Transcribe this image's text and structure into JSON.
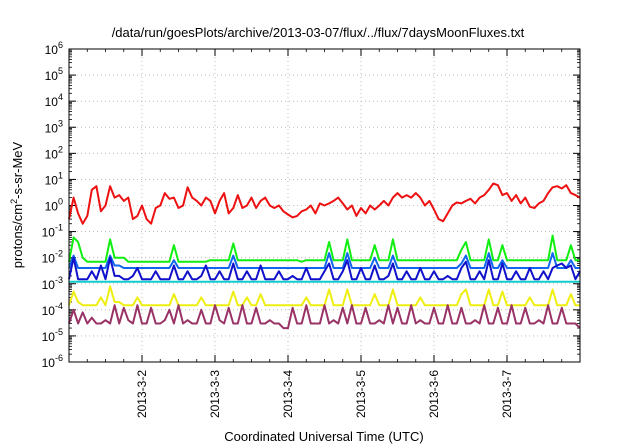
{
  "chart_data": {
    "type": "line",
    "title": "/data/run/goesPlots/archive/2013-03-07/flux/../flux/7daysMoonFluxes.txt",
    "xlabel": "Coordinated Universal Time (UTC)",
    "ylabel": {
      "prefix": "protons/cm",
      "sup": "2",
      "suffix": "-s-sr-MeV"
    },
    "x_ticks": [
      "2013-3-2",
      "2013-3-3",
      "2013-3-4",
      "2013-3-5",
      "2013-3-6",
      "2013-3-7"
    ],
    "x_range_days": [
      0.0,
      7.0
    ],
    "x_tick_days": [
      1.0,
      2.0,
      3.0,
      4.0,
      5.0,
      6.0
    ],
    "yscale": "log",
    "ylim": [
      1e-06,
      1000000.0
    ],
    "y_ticks": [
      {
        "base": "10",
        "exp": "-6"
      },
      {
        "base": "10",
        "exp": "-5"
      },
      {
        "base": "10",
        "exp": "-4"
      },
      {
        "base": "10",
        "exp": "-3"
      },
      {
        "base": "10",
        "exp": "-2"
      },
      {
        "base": "10",
        "exp": "-1"
      },
      {
        "base": "10",
        "exp": "0"
      },
      {
        "base": "10",
        "exp": "1"
      },
      {
        "base": "10",
        "exp": "2"
      },
      {
        "base": "10",
        "exp": "3"
      },
      {
        "base": "10",
        "exp": "4"
      },
      {
        "base": "10",
        "exp": "5"
      },
      {
        "base": "10",
        "exp": "6"
      }
    ],
    "grid": true,
    "series": [
      {
        "color": "#ee1111",
        "values": [
          0.3,
          2.0,
          0.5,
          0.2,
          0.4,
          4.0,
          5.5,
          0.6,
          1.0,
          5.5,
          2.0,
          2.5,
          1.5,
          2.0,
          0.3,
          0.4,
          1.0,
          0.3,
          0.2,
          0.8,
          1.0,
          3.0,
          1.8,
          2.0,
          0.8,
          1.0,
          5.0,
          2.0,
          1.5,
          1.0,
          2.0,
          1.5,
          0.5,
          1.5,
          3.0,
          0.5,
          0.8,
          2.5,
          0.8,
          1.0,
          2.0,
          0.8,
          1.5,
          2.0,
          1.0,
          0.8,
          1.0,
          0.6,
          0.45,
          0.35,
          0.4,
          0.6,
          0.7,
          1.0,
          0.5,
          1.2,
          1.0,
          1.2,
          1.5,
          2.0,
          1.2,
          0.7,
          1.0,
          0.4,
          0.8,
          0.5,
          1.0,
          0.7,
          1.0,
          1.5,
          1.0,
          2.0,
          3.0,
          2.0,
          2.5,
          2.0,
          3.0,
          2.0,
          1.0,
          1.5,
          0.7,
          0.3,
          0.25,
          0.5,
          1.0,
          1.3,
          1.2,
          1.5,
          1.8,
          1.2,
          2.0,
          2.5,
          4.0,
          7.0,
          6.0,
          2.5,
          3.0,
          1.5,
          2.5,
          1.2,
          2.0,
          0.9,
          0.8,
          1.2,
          1.5,
          3.0,
          5.0,
          5.5,
          4.5,
          6.0,
          3.0,
          2.5,
          2.0
        ]
      },
      {
        "color": "#11ee11",
        "values": [
          0.007,
          0.06,
          0.04,
          0.01,
          0.007,
          0.007,
          0.007,
          0.007,
          0.007,
          0.05,
          0.01,
          0.01,
          0.01,
          0.007,
          0.007,
          0.007,
          0.007,
          0.007,
          0.007,
          0.007,
          0.007,
          0.007,
          0.007,
          0.03,
          0.007,
          0.007,
          0.007,
          0.007,
          0.007,
          0.007,
          0.007,
          0.008,
          0.008,
          0.008,
          0.008,
          0.008,
          0.035,
          0.008,
          0.008,
          0.008,
          0.008,
          0.008,
          0.008,
          0.008,
          0.008,
          0.008,
          0.008,
          0.008,
          0.008,
          0.008,
          0.008,
          0.007,
          0.008,
          0.008,
          0.008,
          0.008,
          0.008,
          0.04,
          0.008,
          0.008,
          0.008,
          0.05,
          0.008,
          0.008,
          0.008,
          0.008,
          0.008,
          0.03,
          0.008,
          0.008,
          0.008,
          0.05,
          0.008,
          0.008,
          0.008,
          0.008,
          0.008,
          0.008,
          0.008,
          0.008,
          0.008,
          0.008,
          0.008,
          0.008,
          0.008,
          0.008,
          0.02,
          0.04,
          0.008,
          0.008,
          0.008,
          0.008,
          0.05,
          0.008,
          0.008,
          0.03,
          0.008,
          0.008,
          0.008,
          0.008,
          0.008,
          0.008,
          0.008,
          0.008,
          0.008,
          0.008,
          0.07,
          0.008,
          0.008,
          0.008,
          0.03,
          0.008,
          0.008
        ]
      },
      {
        "color": "#1166ee",
        "values": [
          0.004,
          0.012,
          0.004,
          0.004,
          0.004,
          0.004,
          0.004,
          0.004,
          0.004,
          0.012,
          0.005,
          0.005,
          0.004,
          0.004,
          0.004,
          0.004,
          0.004,
          0.004,
          0.004,
          0.004,
          0.004,
          0.004,
          0.004,
          0.008,
          0.004,
          0.004,
          0.004,
          0.004,
          0.004,
          0.004,
          0.004,
          0.004,
          0.004,
          0.004,
          0.004,
          0.004,
          0.012,
          0.004,
          0.004,
          0.004,
          0.004,
          0.004,
          0.004,
          0.004,
          0.004,
          0.004,
          0.004,
          0.004,
          0.004,
          0.004,
          0.004,
          0.004,
          0.004,
          0.004,
          0.004,
          0.004,
          0.004,
          0.015,
          0.004,
          0.004,
          0.004,
          0.015,
          0.004,
          0.004,
          0.004,
          0.004,
          0.004,
          0.01,
          0.004,
          0.004,
          0.004,
          0.012,
          0.004,
          0.004,
          0.004,
          0.004,
          0.004,
          0.004,
          0.004,
          0.004,
          0.004,
          0.004,
          0.004,
          0.004,
          0.004,
          0.004,
          0.006,
          0.012,
          0.004,
          0.004,
          0.004,
          0.004,
          0.015,
          0.004,
          0.004,
          0.008,
          0.004,
          0.004,
          0.004,
          0.004,
          0.004,
          0.004,
          0.004,
          0.004,
          0.004,
          0.004,
          0.015,
          0.004,
          0.004,
          0.004,
          0.008,
          0.004,
          0.004
        ]
      },
      {
        "color": "#1111cc",
        "values": [
          0.0015,
          0.01,
          0.0015,
          0.0015,
          0.0015,
          0.003,
          0.0015,
          0.005,
          0.0015,
          0.01,
          0.002,
          0.002,
          0.0015,
          0.0015,
          0.002,
          0.004,
          0.0015,
          0.0015,
          0.0015,
          0.003,
          0.0015,
          0.0015,
          0.0015,
          0.005,
          0.0015,
          0.0015,
          0.003,
          0.0015,
          0.0015,
          0.002,
          0.005,
          0.0015,
          0.0015,
          0.003,
          0.0015,
          0.0015,
          0.006,
          0.0015,
          0.0015,
          0.003,
          0.0015,
          0.0015,
          0.005,
          0.0015,
          0.0015,
          0.0015,
          0.003,
          0.0015,
          0.0015,
          0.002,
          0.0015,
          0.0015,
          0.004,
          0.0015,
          0.0015,
          0.0015,
          0.003,
          0.006,
          0.0015,
          0.0015,
          0.003,
          0.008,
          0.0015,
          0.0015,
          0.004,
          0.0015,
          0.0015,
          0.005,
          0.0015,
          0.0015,
          0.002,
          0.006,
          0.0015,
          0.0015,
          0.003,
          0.0015,
          0.0015,
          0.004,
          0.0015,
          0.0015,
          0.003,
          0.0015,
          0.0015,
          0.002,
          0.0015,
          0.0015,
          0.004,
          0.007,
          0.0015,
          0.0015,
          0.003,
          0.0015,
          0.008,
          0.0015,
          0.0015,
          0.006,
          0.0015,
          0.0015,
          0.003,
          0.0015,
          0.0015,
          0.004,
          0.0015,
          0.0015,
          0.003,
          0.0015,
          0.004,
          0.005,
          0.006,
          0.004,
          0.005,
          0.0015,
          0.003
        ]
      },
      {
        "color": "#11cccc",
        "values": [
          0.0012,
          0.0012,
          0.0012,
          0.0012,
          0.0012,
          0.0012,
          0.0012,
          0.0012,
          0.0012,
          0.0012,
          0.0012,
          0.0012,
          0.0012,
          0.0012,
          0.0012,
          0.0012,
          0.0012,
          0.0012,
          0.0012,
          0.0012,
          0.0012,
          0.0012,
          0.0012,
          0.0012,
          0.0012,
          0.0012,
          0.0012,
          0.0012,
          0.0012,
          0.0012,
          0.0012,
          0.0012,
          0.0012,
          0.0012,
          0.0012,
          0.0012,
          0.0012,
          0.0012,
          0.0012,
          0.0012,
          0.0012,
          0.0012,
          0.0012,
          0.0012,
          0.0012,
          0.0012,
          0.0012,
          0.0012,
          0.0012,
          0.0012,
          0.0012,
          0.0012,
          0.0012,
          0.0012,
          0.0012,
          0.0012,
          0.0012,
          0.0012,
          0.0012,
          0.0012,
          0.0012,
          0.0012,
          0.0012,
          0.0012,
          0.0012,
          0.0012,
          0.0012,
          0.0012,
          0.0012,
          0.0012,
          0.0012,
          0.0012,
          0.0012,
          0.0012,
          0.0012,
          0.0012,
          0.0012,
          0.0012,
          0.0012,
          0.0012,
          0.0012,
          0.0012,
          0.0012,
          0.0012,
          0.0012,
          0.0012,
          0.0012,
          0.0012,
          0.0012,
          0.0012,
          0.0012,
          0.0012,
          0.0012,
          0.0012,
          0.0012,
          0.0012,
          0.0012,
          0.0012,
          0.0012,
          0.0012,
          0.0012,
          0.0012,
          0.0012,
          0.0012,
          0.0012,
          0.0012,
          0.0012,
          0.0012,
          0.0012,
          0.0012,
          0.0012,
          0.0012,
          0.0012
        ]
      },
      {
        "color": "#eeee11",
        "values": [
          0.00015,
          0.0005,
          0.0002,
          0.00015,
          0.00015,
          0.00015,
          0.00015,
          0.0003,
          0.00015,
          0.0008,
          0.0002,
          0.0002,
          0.00015,
          0.00015,
          0.00015,
          0.0003,
          0.00015,
          0.00015,
          0.00015,
          0.00015,
          0.00015,
          0.00015,
          0.00015,
          0.0004,
          0.00015,
          0.00015,
          0.00015,
          0.00015,
          0.00015,
          0.0003,
          0.00015,
          0.00015,
          0.00015,
          0.00015,
          0.00015,
          0.00015,
          0.0005,
          0.00015,
          0.00015,
          0.0003,
          0.00015,
          0.00015,
          0.0004,
          0.00015,
          0.00015,
          0.00015,
          0.00015,
          0.00015,
          0.00015,
          0.00015,
          0.00015,
          0.00015,
          0.0003,
          0.00015,
          0.00015,
          0.00015,
          0.00015,
          0.0006,
          0.00015,
          0.00015,
          0.00015,
          0.0006,
          0.00015,
          0.00015,
          0.00015,
          0.00015,
          0.00015,
          0.0004,
          0.00015,
          0.00015,
          0.00015,
          0.0006,
          0.00015,
          0.00015,
          0.00015,
          0.00015,
          0.00015,
          0.0003,
          0.00015,
          0.00015,
          0.00015,
          0.00015,
          0.00015,
          0.00015,
          0.00015,
          0.00015,
          0.0004,
          0.0006,
          0.00015,
          0.00015,
          0.00015,
          0.00015,
          0.0006,
          0.00015,
          0.00015,
          0.0005,
          0.00015,
          0.00015,
          0.00015,
          0.00015,
          0.00015,
          0.0003,
          0.00015,
          0.00015,
          0.00015,
          0.00015,
          0.0006,
          0.00015,
          0.00015,
          0.00015,
          0.0004,
          0.00015,
          0.00015
        ]
      },
      {
        "color": "#993366",
        "values": [
          3e-05,
          0.0001,
          3e-05,
          8e-05,
          3e-05,
          5e-05,
          3e-05,
          3e-05,
          4e-05,
          3e-05,
          0.00015,
          3e-05,
          0.00012,
          4e-05,
          3e-05,
          0.00015,
          3e-05,
          3e-05,
          0.00012,
          3e-05,
          3e-05,
          4e-05,
          0.0001,
          3e-05,
          0.00015,
          3e-05,
          4e-05,
          3e-05,
          3e-05,
          0.0001,
          3e-05,
          3e-05,
          0.00015,
          4e-05,
          3e-05,
          0.00012,
          3e-05,
          3e-05,
          0.00015,
          3e-05,
          3e-05,
          0.00012,
          3e-05,
          3e-05,
          4e-05,
          3e-05,
          3e-05,
          2e-05,
          2e-05,
          0.00012,
          3e-05,
          3e-05,
          0.00015,
          3e-05,
          3e-05,
          3e-05,
          0.00015,
          3e-05,
          4e-05,
          3e-05,
          0.00012,
          3e-05,
          0.00015,
          3e-05,
          3e-05,
          0.00012,
          3e-05,
          3e-05,
          4e-05,
          3e-05,
          0.00015,
          3e-05,
          0.00012,
          3e-05,
          3e-05,
          0.00015,
          3e-05,
          4e-05,
          3e-05,
          3e-05,
          0.00012,
          3e-05,
          3e-05,
          0.00015,
          3e-05,
          3e-05,
          0.00012,
          3e-05,
          3e-05,
          4e-05,
          3e-05,
          0.00015,
          3e-05,
          3e-05,
          0.00012,
          3e-05,
          3e-05,
          0.00015,
          3e-05,
          3e-05,
          0.00012,
          3e-05,
          3e-05,
          4e-05,
          3e-05,
          0.00015,
          3e-05,
          3e-05,
          0.00012,
          3e-05,
          3e-05,
          3e-05,
          2e-05
        ]
      }
    ]
  }
}
